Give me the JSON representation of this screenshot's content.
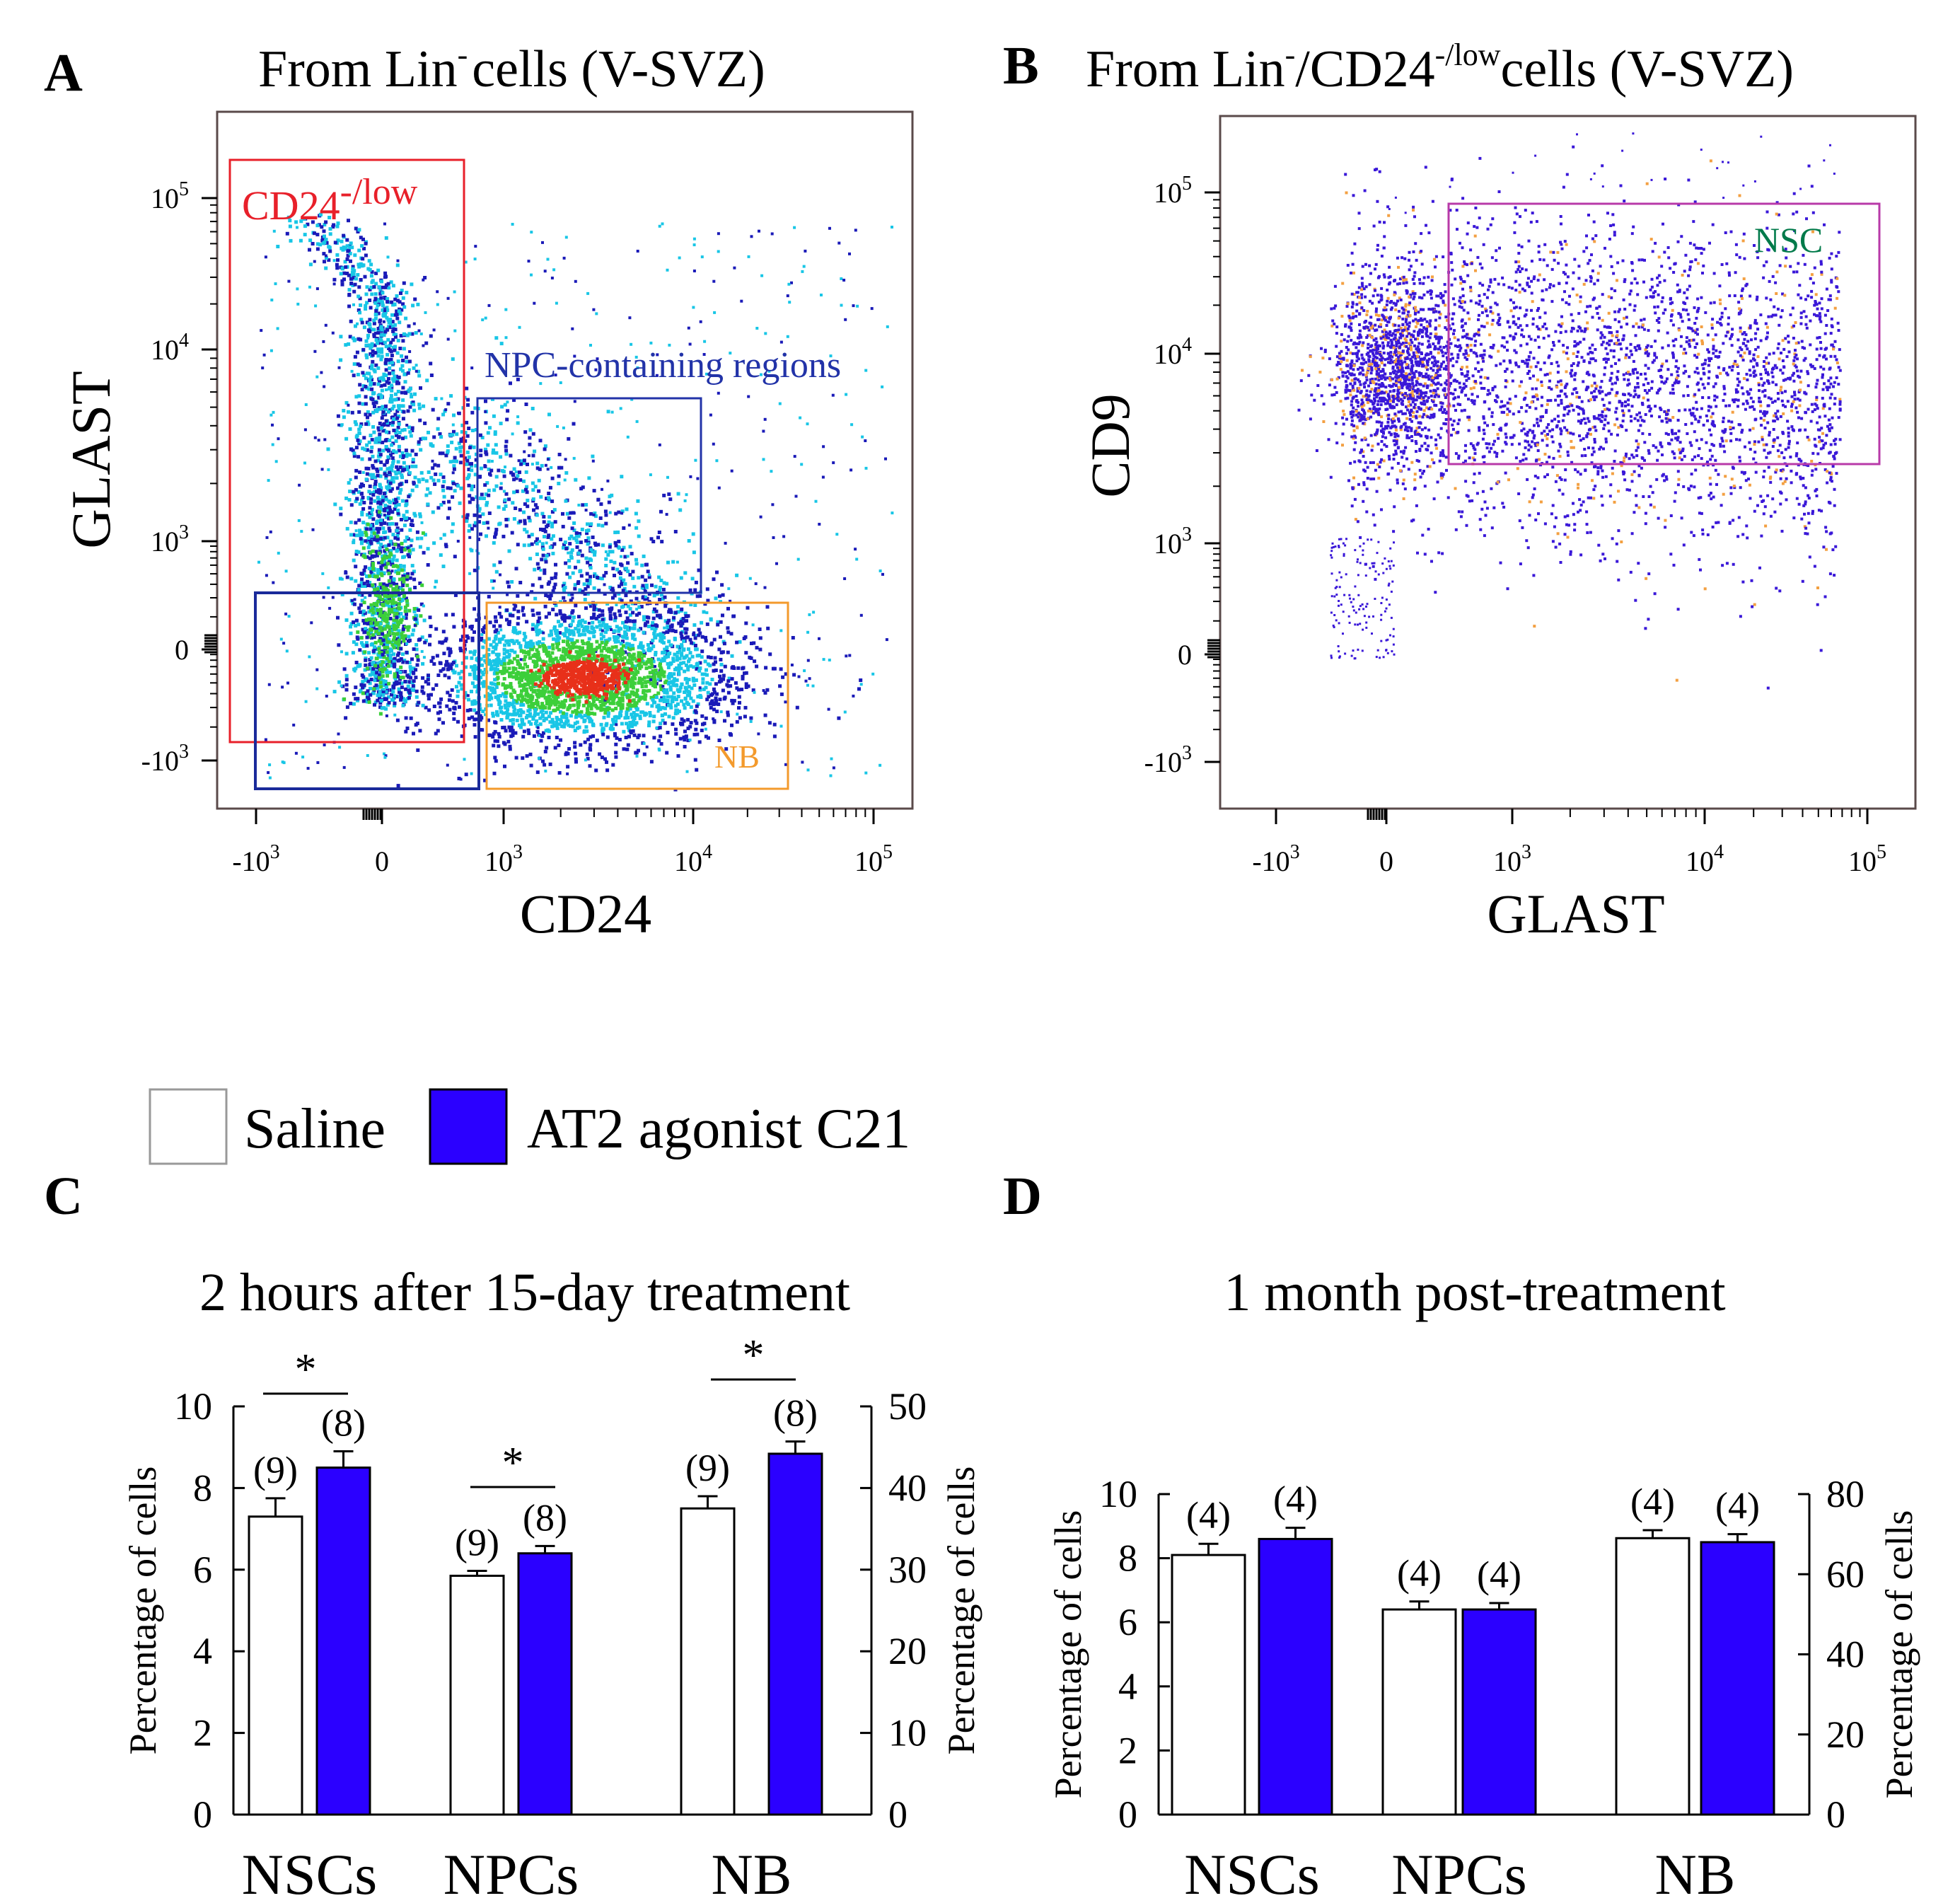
{
  "colors": {
    "saline": "#ffffff",
    "c21": "#2b00ff",
    "gate_cd24": "#e8202a",
    "gate_npc": "#2233a8",
    "gate_nb": "#f39a2c",
    "gate_nsc": "#b83aa8",
    "nsc_label": "#007a4a",
    "density_high": "#e8301a",
    "density_mid": "#3ccf3a",
    "density_low": "#18c6e6",
    "density_base": "#1a1ab8",
    "dot_b_main": "#3a18d8",
    "dot_b_alt": "#f3a042"
  },
  "panelA": {
    "letter": "A",
    "title_pre": "From Lin",
    "title_sup": "-",
    "title_post": "cells (V-SVZ)",
    "xlabel": "CD24",
    "ylabel": "GLAST",
    "y_ticks": [
      {
        "base": "10",
        "exp": "5"
      },
      {
        "base": "10",
        "exp": "4"
      },
      {
        "base": "10",
        "exp": "3"
      },
      {
        "base": "0",
        "exp": ""
      },
      {
        "base": "-10",
        "exp": "3"
      }
    ],
    "x_ticks": [
      {
        "base": "-10",
        "exp": "3"
      },
      {
        "base": "0",
        "exp": ""
      },
      {
        "base": "10",
        "exp": "3"
      },
      {
        "base": "10",
        "exp": "4"
      },
      {
        "base": "10",
        "exp": "5"
      }
    ],
    "gate_cd24_label": "CD24",
    "gate_cd24_sup": "-/low",
    "gate_npc_label": "NPC-containing regions",
    "gate_nb_label": "NB"
  },
  "panelB": {
    "letter": "B",
    "title_pre": "From Lin",
    "title_sup1": "-",
    "title_mid": "/CD24",
    "title_sup2": "-/low",
    "title_post": "cells (V-SVZ)",
    "xlabel": "GLAST",
    "ylabel": "CD9",
    "y_ticks": [
      {
        "base": "10",
        "exp": "5"
      },
      {
        "base": "10",
        "exp": "4"
      },
      {
        "base": "10",
        "exp": "3"
      },
      {
        "base": "0",
        "exp": ""
      },
      {
        "base": "-10",
        "exp": "3"
      }
    ],
    "x_ticks": [
      {
        "base": "-10",
        "exp": "3"
      },
      {
        "base": "0",
        "exp": ""
      },
      {
        "base": "10",
        "exp": "3"
      },
      {
        "base": "10",
        "exp": "4"
      },
      {
        "base": "10",
        "exp": "5"
      }
    ],
    "gate_nsc_label": "NSC"
  },
  "legend": {
    "saline": "Saline",
    "c21": "AT2 agonist C21"
  },
  "chart_data": [
    {
      "type": "bar",
      "panel": "C",
      "title": "2 hours after 15-day treatment",
      "categories": [
        "NSCs",
        "NPCs",
        "NB"
      ],
      "ylabel": "Percentage of cells",
      "y2label": "Percentage of cells",
      "ylim": [
        0,
        10
      ],
      "y2lim": [
        0,
        50
      ],
      "yticks": [
        "0",
        "2",
        "4",
        "6",
        "8",
        "10"
      ],
      "y2ticks": [
        "0",
        "10",
        "20",
        "30",
        "40",
        "50"
      ],
      "note": "NB plotted on right axis",
      "series": [
        {
          "name": "Saline",
          "values": [
            7.3,
            5.85,
            37.5
          ],
          "errors": [
            0.45,
            0.12,
            1.5
          ],
          "n_labels": [
            "(9)",
            "(9)",
            "(9)"
          ]
        },
        {
          "name": "AT2 agonist C21",
          "values": [
            8.5,
            6.4,
            44.2
          ],
          "errors": [
            0.4,
            0.18,
            1.5
          ],
          "n_labels": [
            "(8)",
            "(8)",
            "(8)"
          ]
        }
      ],
      "significance": [
        "*",
        "*",
        "*"
      ]
    },
    {
      "type": "bar",
      "panel": "D",
      "title": "1 month post-treatment",
      "categories": [
        "NSCs",
        "NPCs",
        "NB"
      ],
      "ylabel": "Percentage of cells",
      "y2label": "Percentage of cells",
      "ylim": [
        0,
        10
      ],
      "y2lim": [
        0,
        80
      ],
      "yticks": [
        "0",
        "2",
        "4",
        "6",
        "8",
        "10"
      ],
      "y2ticks": [
        "0",
        "20",
        "40",
        "60",
        "80"
      ],
      "note": "NB plotted on right axis",
      "series": [
        {
          "name": "Saline",
          "values": [
            8.1,
            6.4,
            69
          ],
          "errors": [
            0.35,
            0.25,
            2
          ],
          "n_labels": [
            "(4)",
            "(4)",
            "(4)"
          ]
        },
        {
          "name": "AT2 agonist C21",
          "values": [
            8.6,
            6.4,
            68
          ],
          "errors": [
            0.35,
            0.2,
            2
          ],
          "n_labels": [
            "(4)",
            "(4)",
            "(4)"
          ]
        }
      ]
    }
  ]
}
